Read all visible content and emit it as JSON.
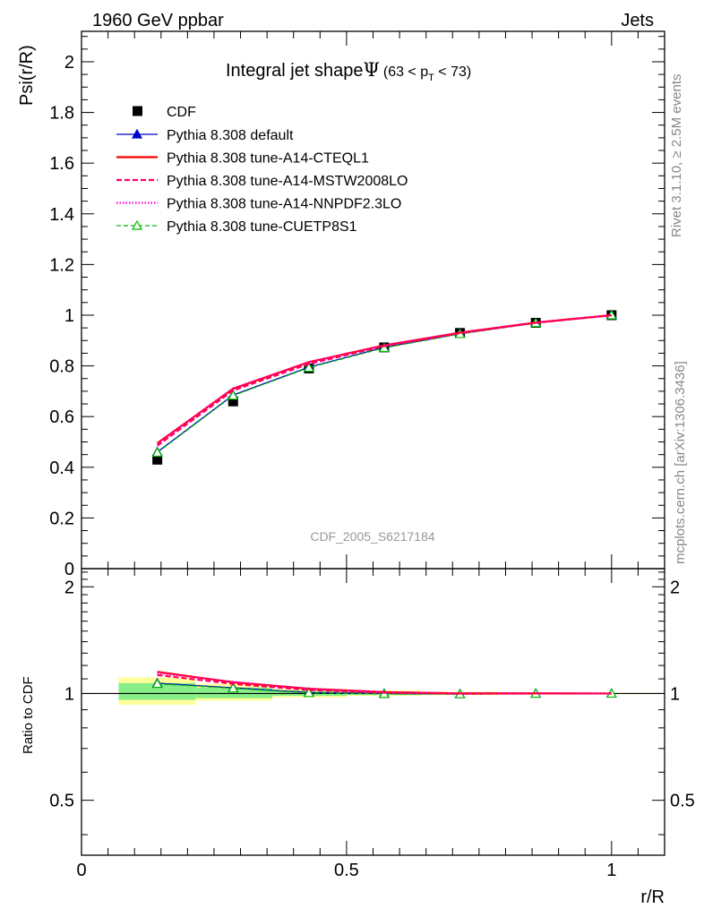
{
  "header": {
    "left": "1960 GeV ppbar",
    "right": "Jets"
  },
  "side_labels": {
    "rivet": "Rivet 3.1.10, ≥ 2.5M events",
    "mcplots": "mcplots.cern.ch [arXiv:1306.3436]"
  },
  "chart_data": {
    "type": "line",
    "title": "Integral jet shape",
    "title_symbol": "Ψ",
    "title_range": {
      "pre": "(63 < p",
      "sub": "T",
      "post": " < 73)"
    },
    "watermark": "CDF_2005_S6217184",
    "xlabel": "r/R",
    "ylabel": "Psi(r/R)",
    "ratio_ylabel": "Ratio to CDF",
    "xlim": [
      0,
      1.1
    ],
    "ylim": [
      0,
      2.12
    ],
    "ratio_ylim": [
      0.35,
      2.25
    ],
    "ratio_log": true,
    "x_ticks": [
      {
        "v": 0,
        "label": "0"
      },
      {
        "v": 0.5,
        "label": "0.5"
      },
      {
        "v": 1,
        "label": "1"
      }
    ],
    "y_ticks": [
      {
        "v": 0,
        "label": "0"
      },
      {
        "v": 0.2,
        "label": "0.2"
      },
      {
        "v": 0.4,
        "label": "0.4"
      },
      {
        "v": 0.6,
        "label": "0.6"
      },
      {
        "v": 0.8,
        "label": "0.8"
      },
      {
        "v": 1,
        "label": "1"
      },
      {
        "v": 1.2,
        "label": "1.2"
      },
      {
        "v": 1.4,
        "label": "1.4"
      },
      {
        "v": 1.6,
        "label": "1.6"
      },
      {
        "v": 1.8,
        "label": "1.8"
      },
      {
        "v": 2,
        "label": "2"
      }
    ],
    "ratio_ticks": [
      {
        "v": 0.5,
        "label": "0.5"
      },
      {
        "v": 1,
        "label": "1"
      },
      {
        "v": 2,
        "label": "2"
      }
    ],
    "x": [
      0.143,
      0.286,
      0.429,
      0.571,
      0.714,
      0.857,
      1.0
    ],
    "data": {
      "name": "CDF",
      "values": [
        0.43,
        0.66,
        0.79,
        0.873,
        0.93,
        0.97,
        1.0
      ],
      "bin_lo": [
        0.07,
        0.215,
        0.36,
        0.5,
        0.64,
        0.785,
        0.93
      ],
      "bin_hi": [
        0.215,
        0.36,
        0.5,
        0.64,
        0.785,
        0.93,
        1.07
      ],
      "band_inner": [
        [
          0.96,
          1.07
        ],
        [
          0.97,
          1.04
        ],
        [
          0.985,
          1.02
        ],
        [
          0.99,
          1.012
        ],
        [
          0.994,
          1.008
        ],
        [
          0.996,
          1.005
        ],
        [
          0.998,
          1.002
        ]
      ],
      "band_outer": [
        [
          0.93,
          1.11
        ],
        [
          0.955,
          1.065
        ],
        [
          0.975,
          1.03
        ],
        [
          0.985,
          1.02
        ],
        [
          0.99,
          1.012
        ],
        [
          0.993,
          1.008
        ],
        [
          0.996,
          1.004
        ]
      ]
    },
    "series": [
      {
        "name": "Pythia 8.308 default",
        "color": "#0000cc",
        "dash": "",
        "width": 1.3,
        "marker": "triangle-filled",
        "values": [
          0.46,
          0.685,
          0.795,
          0.873,
          0.927,
          0.97,
          1.0
        ]
      },
      {
        "name": "Pythia 8.308 tune-A14-CTEQL1",
        "color": "#ff0000",
        "dash": "",
        "width": 2.2,
        "marker": "none",
        "values": [
          0.495,
          0.71,
          0.815,
          0.881,
          0.931,
          0.971,
          1.0
        ]
      },
      {
        "name": "Pythia 8.308 tune-A14-MSTW2008LO",
        "color": "#ff0066",
        "dash": "6,3",
        "width": 2.2,
        "marker": "none",
        "values": [
          0.485,
          0.703,
          0.808,
          0.878,
          0.929,
          0.97,
          1.0
        ]
      },
      {
        "name": "Pythia 8.308 tune-A14-NNPDF2.3LO",
        "color": "#ff00cc",
        "dash": "1.5,2",
        "width": 2.2,
        "marker": "none",
        "values": [
          0.492,
          0.712,
          0.815,
          0.881,
          0.931,
          0.971,
          1.0
        ]
      },
      {
        "name": "Pythia 8.308 tune-CUETP8S1",
        "color": "#00bb00",
        "dash": "5,3",
        "width": 1.3,
        "marker": "triangle-open",
        "values": [
          0.458,
          0.683,
          0.793,
          0.871,
          0.926,
          0.969,
          1.0
        ]
      }
    ]
  }
}
